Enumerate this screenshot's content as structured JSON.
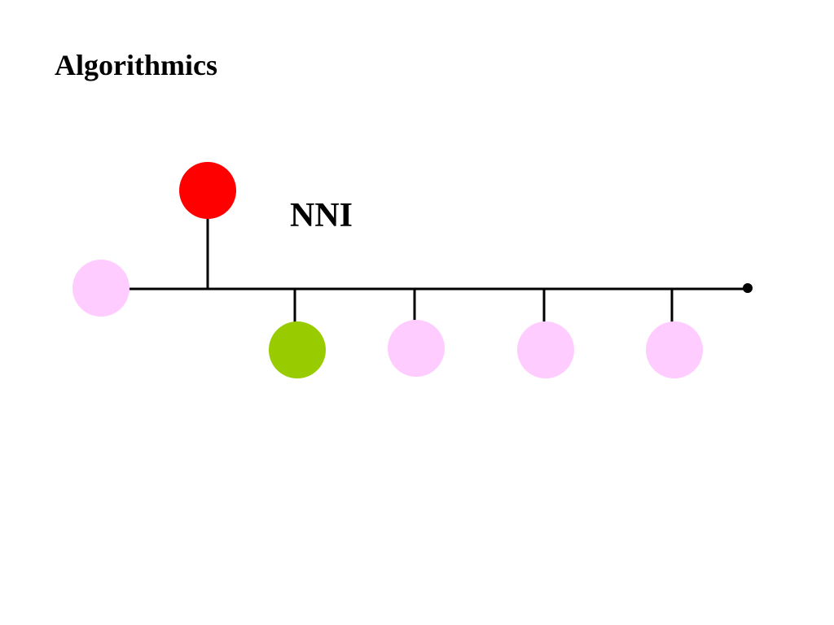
{
  "header": {
    "title": "Algorithmics"
  },
  "diagram": {
    "label": "NNI"
  }
}
